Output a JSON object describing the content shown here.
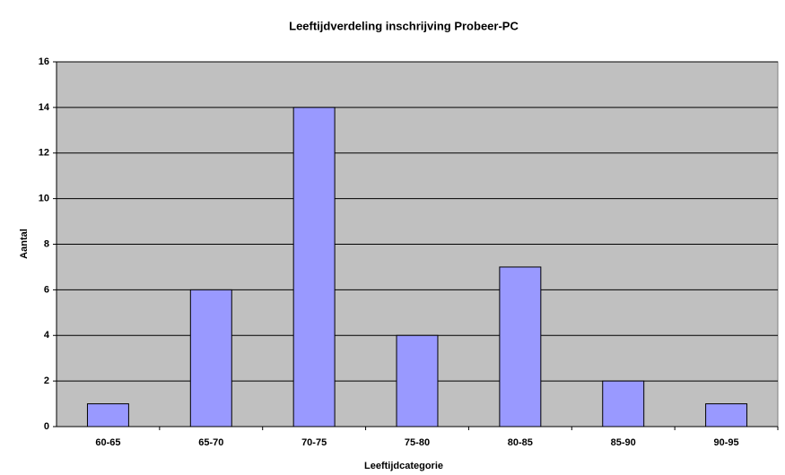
{
  "chart_data": {
    "type": "bar",
    "title": "Leeftijdverdeling inschrijving Probeer-PC",
    "x_label": "Leeftijdcategorie",
    "y_label": "Aantal",
    "categories": [
      "60-65",
      "65-70",
      "70-75",
      "75-80",
      "80-85",
      "85-90",
      "90-95"
    ],
    "values": [
      1,
      6,
      14,
      4,
      7,
      2,
      1
    ],
    "color": "#9999ff",
    "ylim": [
      0,
      16
    ],
    "yticks": [
      0,
      2,
      4,
      6,
      8,
      10,
      12,
      14,
      16
    ],
    "grid": true
  }
}
